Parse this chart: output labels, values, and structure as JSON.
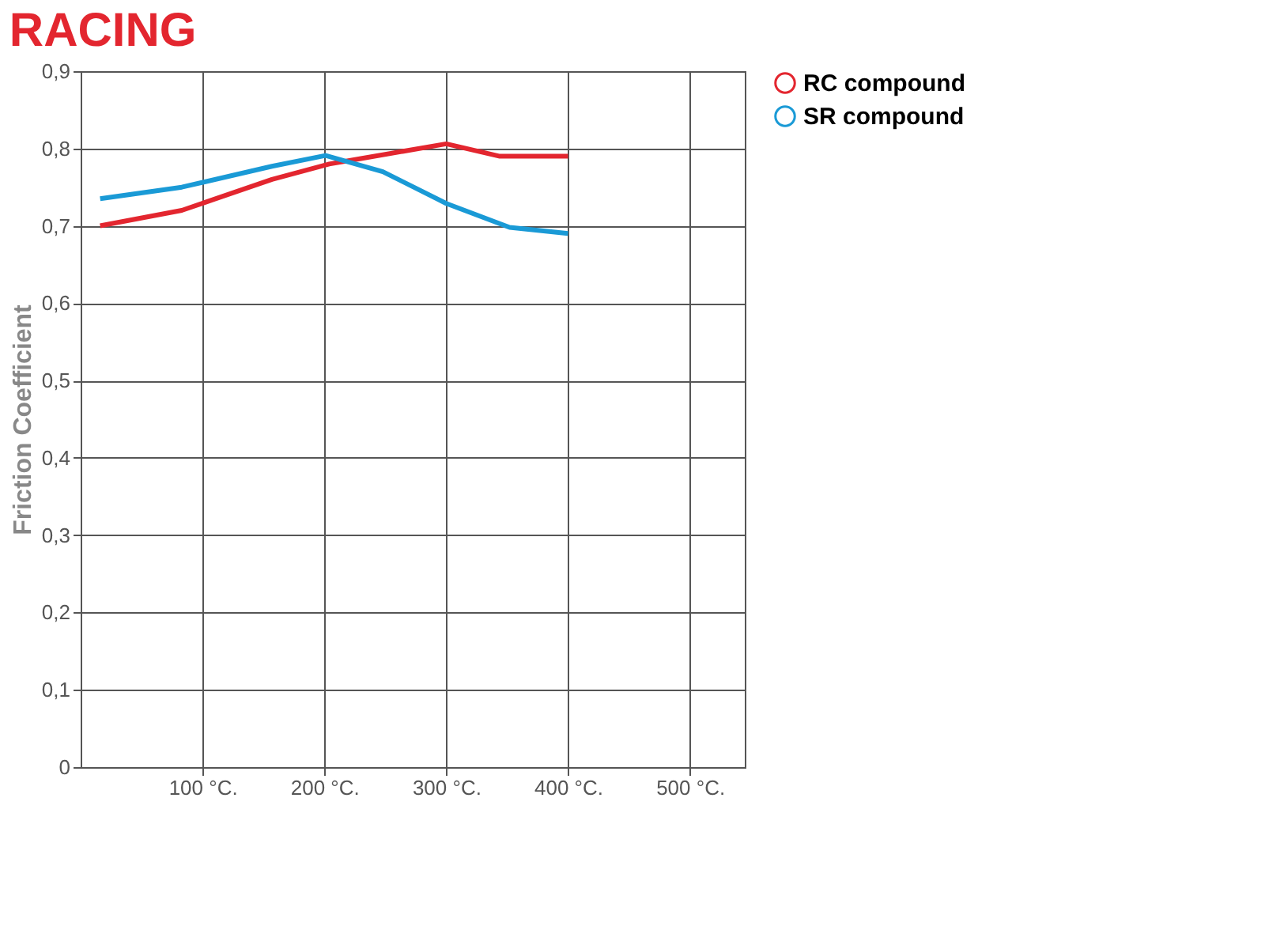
{
  "chart_data": {
    "type": "line",
    "title": "RACING",
    "ylabel": "Friction Coefficient",
    "xlim": [
      0,
      545
    ],
    "ylim": [
      0,
      0.9
    ],
    "xticks": [
      {
        "value": 100,
        "label": "100 °C."
      },
      {
        "value": 200,
        "label": "200 °C."
      },
      {
        "value": 300,
        "label": "300 °C."
      },
      {
        "value": 400,
        "label": "400 °C."
      },
      {
        "value": 500,
        "label": "500 °C."
      }
    ],
    "yticks": [
      {
        "value": 0,
        "label": "0"
      },
      {
        "value": 0.1,
        "label": "0,1"
      },
      {
        "value": 0.2,
        "label": "0,2"
      },
      {
        "value": 0.3,
        "label": "0,3"
      },
      {
        "value": 0.4,
        "label": "0,4"
      },
      {
        "value": 0.5,
        "label": "0,5"
      },
      {
        "value": 0.6,
        "label": "0,6"
      },
      {
        "value": 0.7,
        "label": "0,7"
      },
      {
        "value": 0.8,
        "label": "0,8"
      },
      {
        "value": 0.9,
        "label": "0,9"
      }
    ],
    "grid": true,
    "legend": "right",
    "marker": "none",
    "line_style": "solid",
    "series": [
      {
        "name": "RC compound",
        "color": "#e3262f",
        "x": [
          16,
          83,
          157,
          204,
          230,
          300,
          344,
          400
        ],
        "values": [
          0.7,
          0.72,
          0.76,
          0.78,
          0.787,
          0.806,
          0.79,
          0.79
        ]
      },
      {
        "name": "SR compound",
        "color": "#1a9ad6",
        "x": [
          16,
          83,
          157,
          201,
          248,
          300,
          352,
          400
        ],
        "values": [
          0.735,
          0.75,
          0.777,
          0.791,
          0.77,
          0.729,
          0.698,
          0.69
        ]
      }
    ]
  }
}
